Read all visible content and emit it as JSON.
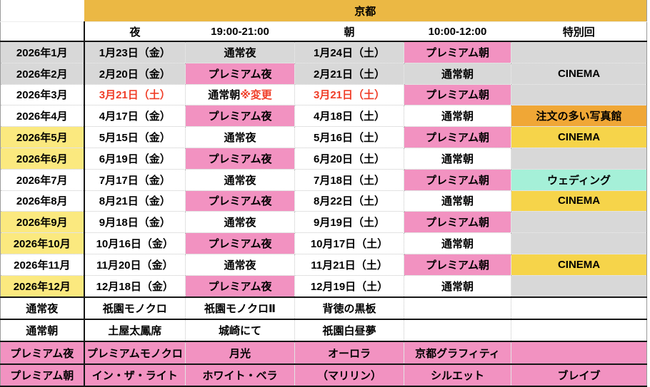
{
  "table": {
    "region_header": "京都",
    "column_headers": [
      "夜",
      "19:00-21:00",
      "朝",
      "10:00-12:00",
      "特別回"
    ],
    "colors": {
      "orange_band": "#EBB844",
      "yellow_month": "#FBE97F",
      "pink": "#F292C1",
      "gray": "#D8D8D8",
      "cinema_yellow": "#F6D44A",
      "special_orange": "#F0A736",
      "cyan": "#A5F0D8",
      "red_text": "#F03E28"
    },
    "month_rows": [
      {
        "month": "2026年1月",
        "month_bg": "gray",
        "date_bg": "gray",
        "night_date": "1月23日（金）",
        "night_type": "通常夜",
        "night_note": "",
        "night_bg": "gray",
        "morning_date": "1月24日（土）",
        "morning_type": "プレミアム朝",
        "morning_bg": "pink",
        "special": "",
        "special_bg": "gray",
        "dates_red": false
      },
      {
        "month": "2026年2月",
        "month_bg": "gray",
        "date_bg": "gray",
        "night_date": "2月20日（金）",
        "night_type": "プレミアム夜",
        "night_note": "",
        "night_bg": "pink",
        "morning_date": "2月21日（土）",
        "morning_type": "通常朝",
        "morning_bg": "gray",
        "special": "CINEMA",
        "special_bg": "gray",
        "dates_red": false
      },
      {
        "month": "2026年3月",
        "month_bg": "white",
        "date_bg": "white",
        "night_date": "3月21日（土）",
        "night_type": "通常朝",
        "night_note": "※変更",
        "night_bg": "white",
        "morning_date": "3月21日（土）",
        "morning_type": "プレミアム朝",
        "morning_bg": "pink",
        "special": "",
        "special_bg": "gray",
        "dates_red": true
      },
      {
        "month": "2026年4月",
        "month_bg": "white",
        "date_bg": "white",
        "night_date": "4月17日（金）",
        "night_type": "プレミアム夜",
        "night_note": "",
        "night_bg": "pink",
        "morning_date": "4月18日（土）",
        "morning_type": "通常朝",
        "morning_bg": "white",
        "special": "注文の多い写真館",
        "special_bg": "special_orange",
        "dates_red": false
      },
      {
        "month": "2026年5月",
        "month_bg": "yellow_month",
        "date_bg": "white",
        "night_date": "5月15日（金）",
        "night_type": "通常夜",
        "night_note": "",
        "night_bg": "white",
        "morning_date": "5月16日（土）",
        "morning_type": "プレミアム朝",
        "morning_bg": "pink",
        "special": "CINEMA",
        "special_bg": "cinema_yellow",
        "dates_red": false
      },
      {
        "month": "2026年6月",
        "month_bg": "yellow_month",
        "date_bg": "white",
        "night_date": "6月19日（金）",
        "night_type": "プレミアム夜",
        "night_note": "",
        "night_bg": "pink",
        "morning_date": "6月20日（土）",
        "morning_type": "通常朝",
        "morning_bg": "white",
        "special": "",
        "special_bg": "gray",
        "dates_red": false
      },
      {
        "month": "2026年7月",
        "month_bg": "white",
        "date_bg": "white",
        "night_date": "7月17日（金）",
        "night_type": "通常夜",
        "night_note": "",
        "night_bg": "white",
        "morning_date": "7月18日（土）",
        "morning_type": "プレミアム朝",
        "morning_bg": "pink",
        "special": "ウェディング",
        "special_bg": "cyan",
        "dates_red": false
      },
      {
        "month": "2026年8月",
        "month_bg": "white",
        "date_bg": "white",
        "night_date": "8月21日（金）",
        "night_type": "プレミアム夜",
        "night_note": "",
        "night_bg": "pink",
        "morning_date": "8月22日（土）",
        "morning_type": "通常朝",
        "morning_bg": "white",
        "special": "CINEMA",
        "special_bg": "cinema_yellow",
        "dates_red": false
      },
      {
        "month": "2026年9月",
        "month_bg": "yellow_month",
        "date_bg": "white",
        "night_date": "9月18日（金）",
        "night_type": "通常夜",
        "night_note": "",
        "night_bg": "white",
        "morning_date": "9月19日（土）",
        "morning_type": "プレミアム朝",
        "morning_bg": "pink",
        "special": "",
        "special_bg": "gray",
        "dates_red": false
      },
      {
        "month": "2026年10月",
        "month_bg": "yellow_month",
        "date_bg": "white",
        "night_date": "10月16日（金）",
        "night_type": "プレミアム夜",
        "night_note": "",
        "night_bg": "pink",
        "morning_date": "10月17日（土）",
        "morning_type": "通常朝",
        "morning_bg": "white",
        "special": "",
        "special_bg": "gray",
        "dates_red": false
      },
      {
        "month": "2026年11月",
        "month_bg": "white",
        "date_bg": "white",
        "night_date": "11月20日（金）",
        "night_type": "通常夜",
        "night_note": "",
        "night_bg": "white",
        "morning_date": "11月21日（土）",
        "morning_type": "プレミアム朝",
        "morning_bg": "pink",
        "special": "CINEMA",
        "special_bg": "cinema_yellow",
        "dates_red": false
      },
      {
        "month": "2026年12月",
        "month_bg": "yellow_month",
        "date_bg": "white",
        "night_date": "12月18日（金）",
        "night_type": "プレミアム夜",
        "night_note": "",
        "night_bg": "pink",
        "morning_date": "12月19日（土）",
        "morning_type": "通常朝",
        "morning_bg": "white",
        "special": "",
        "special_bg": "gray",
        "dates_red": false
      }
    ],
    "legend_rows": [
      {
        "label": "通常夜",
        "row_bg": "white",
        "items": [
          "祇園モノクロ",
          "祇園モノクロⅡ",
          "背徳の黒板",
          "",
          ""
        ]
      },
      {
        "label": "通常朝",
        "row_bg": "white",
        "items": [
          "土屋太鳳席",
          "城崎にて",
          "祇園白昼夢",
          "",
          ""
        ]
      },
      {
        "label": "プレミアム夜",
        "row_bg": "pink",
        "items": [
          "プレミアムモノクロ",
          "月光",
          "オーロラ",
          "京都グラフィティ",
          ""
        ]
      },
      {
        "label": "プレミアム朝",
        "row_bg": "pink",
        "items": [
          "イン・ザ・ライト",
          "ホワイト・ベラ",
          "（マリリン）",
          "シルエット",
          "ブレイブ"
        ]
      }
    ]
  }
}
